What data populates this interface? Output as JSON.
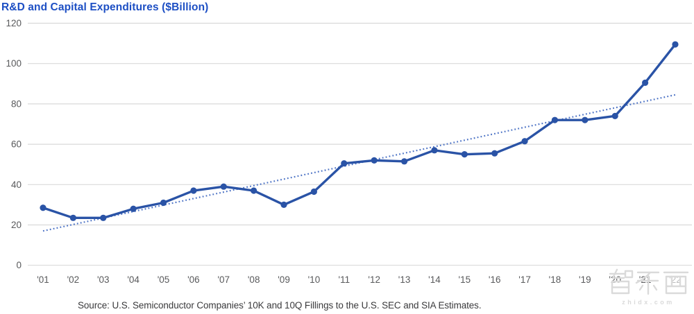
{
  "title": "R&D and Capital Expenditures ($Billion)",
  "source_note": "Source: U.S. Semiconductor Companies’ 10K and 10Q Fillings to the U.S. SEC and SIA Estimates.",
  "watermark": {
    "logo_text": "智东西",
    "url_text": "zhidx.com"
  },
  "colors": {
    "title": "#1d4fc4",
    "line": "#2a53a6",
    "trend": "#4d73c5",
    "grid": "#d9d9d9",
    "tick": "#58595b",
    "source": "#3a3a3c",
    "watermark": "#dadada"
  },
  "chart_data": {
    "type": "line",
    "title": "R&D and Capital Expenditures ($Billion)",
    "x_labels": [
      "'01",
      "'02",
      "'03",
      "'04",
      "'05",
      "'06",
      "'07",
      "'08",
      "'09",
      "'10",
      "'11",
      "'12",
      "'13",
      "'14",
      "'15",
      "'16",
      "'17",
      "'18",
      "'19",
      "'20",
      "'21",
      "'22"
    ],
    "series": [
      {
        "name": "R&D and Capital Expenditures ($Billion)",
        "values": [
          28.5,
          23.5,
          23.5,
          28,
          31,
          37,
          39,
          37,
          30,
          36.5,
          50.5,
          52,
          51.5,
          57,
          55,
          55.5,
          61.5,
          72,
          72,
          74,
          90.5,
          109.5
        ]
      }
    ],
    "trend_line": {
      "style": "dotted",
      "start": 17,
      "end": 84.5
    },
    "y_ticks": [
      0,
      20,
      40,
      60,
      80,
      100,
      120
    ],
    "ylim": [
      0,
      120
    ],
    "grid": "horizontal",
    "legend": "none"
  }
}
